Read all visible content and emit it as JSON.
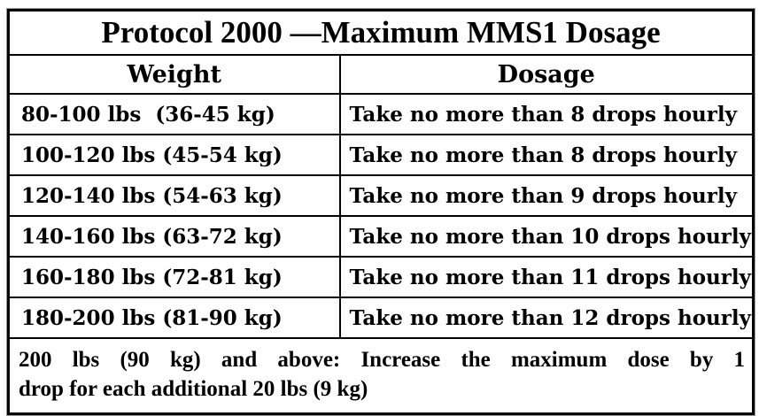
{
  "table": {
    "title": "Protocol 2000 —Maximum MMS1 Dosage",
    "columns": {
      "weight": "Weight",
      "dosage": "Dosage"
    },
    "rows": [
      {
        "weight": "80-100 lbs  (36-45 kg)",
        "dosage": "Take no more than 8 drops hourly"
      },
      {
        "weight": "100-120 lbs (45-54 kg)",
        "dosage": "Take no more than 8 drops hourly"
      },
      {
        "weight": "120-140 lbs (54-63 kg)",
        "dosage": "Take no more than 9 drops hourly"
      },
      {
        "weight": "140-160 lbs (63-72 kg)",
        "dosage": "Take no more than 10 drops hourly"
      },
      {
        "weight": "160-180 lbs (72-81 kg)",
        "dosage": "Take no more than 11 drops hourly"
      },
      {
        "weight": "180-200 lbs (81-90 kg)",
        "dosage": "Take no more than 12 drops hourly"
      }
    ],
    "footnote": {
      "text": "200 lbs (90 kg) and above: Increase the maximum dose by 1 drop for each additional 20 lbs (9 kg)",
      "lines": [
        "200 lbs (90 kg) and above: Increase the maximum dose by 1",
        "drop for each additional 20 lbs (9 kg)"
      ]
    }
  },
  "colors": {
    "text": "#000000",
    "border": "#000000",
    "background": "#ffffff"
  }
}
